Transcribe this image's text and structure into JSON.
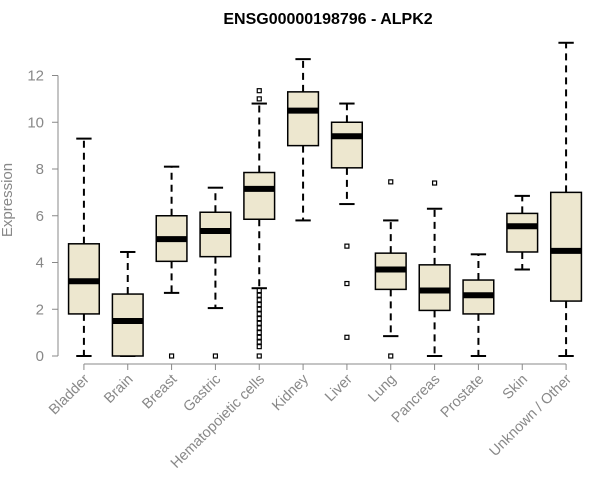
{
  "chart_data": {
    "type": "boxplot",
    "title": "ENSG00000198796 - ALPK2",
    "xlabel": "",
    "ylabel": "Expression",
    "ylim": [
      0,
      13.5
    ],
    "yticks": [
      0,
      2,
      4,
      6,
      8,
      10,
      12
    ],
    "grid": false,
    "colors": {
      "box_fill": "#ede7cf",
      "box_stroke": "#000000",
      "median": "#000000",
      "axis_text": "#888888"
    },
    "categories": [
      "Bladder",
      "Brain",
      "Breast",
      "Gastric",
      "Hematopoietic cells",
      "Kidney",
      "Liver",
      "Lung",
      "Pancreas",
      "Prostate",
      "Skin",
      "Unknown / Other"
    ],
    "boxes": [
      {
        "min": 0.0,
        "q1": 1.8,
        "median": 3.2,
        "q3": 4.8,
        "max": 9.3,
        "outliers": []
      },
      {
        "min": 0.0,
        "q1": 0.0,
        "median": 1.5,
        "q3": 2.65,
        "max": 4.45,
        "outliers": []
      },
      {
        "min": 2.7,
        "q1": 4.05,
        "median": 5.0,
        "q3": 6.0,
        "max": 8.1,
        "outliers": [
          0.0
        ]
      },
      {
        "min": 2.05,
        "q1": 4.25,
        "median": 5.35,
        "q3": 6.15,
        "max": 7.2,
        "outliers": [
          0.0
        ]
      },
      {
        "min": 2.9,
        "q1": 5.85,
        "median": 7.15,
        "q3": 7.85,
        "max": 10.8,
        "outliers": [
          11.0,
          11.35,
          2.8,
          2.6,
          2.4,
          2.2,
          2.0,
          1.8,
          1.6,
          1.4,
          1.2,
          1.0,
          0.8,
          0.6,
          0.4,
          0.0
        ]
      },
      {
        "min": 5.8,
        "q1": 9.0,
        "median": 10.5,
        "q3": 11.3,
        "max": 12.7,
        "outliers": []
      },
      {
        "min": 6.5,
        "q1": 8.05,
        "median": 9.4,
        "q3": 10.0,
        "max": 10.8,
        "outliers": [
          4.7,
          3.1,
          0.8
        ]
      },
      {
        "min": 0.85,
        "q1": 2.85,
        "median": 3.7,
        "q3": 4.4,
        "max": 5.8,
        "outliers": [
          7.45,
          0.0
        ]
      },
      {
        "min": 0.0,
        "q1": 1.95,
        "median": 2.8,
        "q3": 3.9,
        "max": 6.3,
        "outliers": [
          7.4
        ]
      },
      {
        "min": 0.0,
        "q1": 1.8,
        "median": 2.6,
        "q3": 3.25,
        "max": 4.35,
        "outliers": []
      },
      {
        "min": 3.7,
        "q1": 4.45,
        "median": 5.55,
        "q3": 6.1,
        "max": 6.85,
        "outliers": []
      },
      {
        "min": 0.0,
        "q1": 2.35,
        "median": 4.5,
        "q3": 7.0,
        "max": 13.4,
        "outliers": []
      }
    ]
  }
}
